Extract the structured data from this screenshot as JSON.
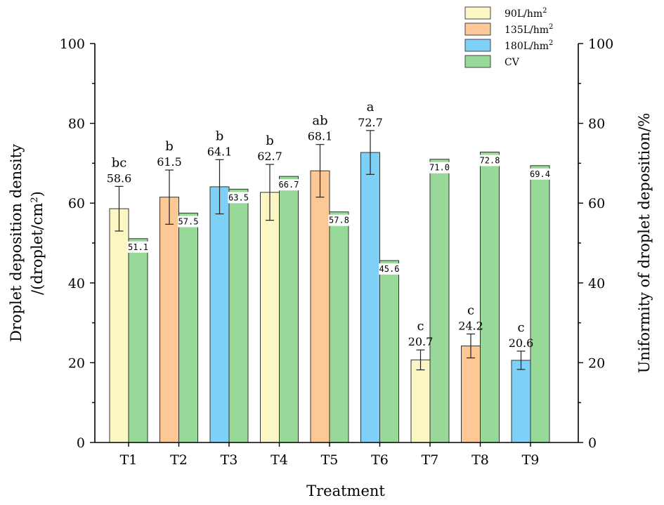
{
  "chart_data": {
    "type": "bar",
    "categories": [
      "T1",
      "T2",
      "T3",
      "T4",
      "T5",
      "T6",
      "T7",
      "T8",
      "T9"
    ],
    "xlabel": "Treatment",
    "ylabel_left_line1": "Droplet deposition density",
    "ylabel_left_line2": "/(droplet/cm",
    "ylabel_left_sup": "2",
    "ylabel_left_close": ")",
    "ylabel_right": "Uniformity of droplet deposition/%",
    "ylim_left": [
      0,
      100
    ],
    "ylim_right": [
      0,
      100
    ],
    "yticks": [
      0,
      20,
      40,
      60,
      80,
      100
    ],
    "density": {
      "values": [
        "58.6",
        "61.5",
        "64.1",
        "62.7",
        "68.1",
        "72.7",
        "20.7",
        "24.2",
        "20.6"
      ],
      "errors": [
        5.6,
        6.8,
        6.8,
        7.0,
        6.6,
        5.5,
        2.5,
        3.0,
        2.3
      ],
      "letters": [
        "bc",
        "b",
        "b",
        "b",
        "ab",
        "a",
        "c",
        "c",
        "c"
      ],
      "rate_series": [
        "90L/hm2",
        "135L/hm2",
        "180L/hm2",
        "90L/hm2",
        "135L/hm2",
        "180L/hm2",
        "90L/hm2",
        "135L/hm2",
        "180L/hm2"
      ]
    },
    "cv": {
      "name": "CV",
      "values": [
        "51.1",
        "57.5",
        "63.5",
        "66.7",
        "57.8",
        "45.6",
        "71.0",
        "72.8",
        "69.4"
      ]
    },
    "legend": [
      {
        "label": "90L/hm",
        "sup": "2",
        "color": "#fbf6c4"
      },
      {
        "label": "135L/hm",
        "sup": "2",
        "color": "#fbc896"
      },
      {
        "label": "180L/hm",
        "sup": "2",
        "color": "#7fd0f7"
      },
      {
        "label": "CV",
        "sup": "",
        "color": "#98d898"
      }
    ],
    "legend_position": "top-right"
  }
}
